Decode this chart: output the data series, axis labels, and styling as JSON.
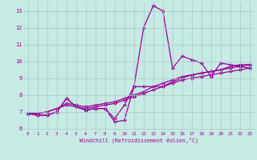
{
  "xlabel": "Windchill (Refroidissement éolien,°C)",
  "bg_color": "#c8eae4",
  "grid_color": "#a8c8c4",
  "line_color": "#990099",
  "marker": "D",
  "markersize": 2.0,
  "linewidth": 0.9,
  "xlim": [
    -0.5,
    23.5
  ],
  "ylim": [
    5.85,
    13.55
  ],
  "yticks": [
    6,
    7,
    8,
    9,
    10,
    11,
    12,
    13
  ],
  "xticks": [
    0,
    1,
    2,
    3,
    4,
    5,
    6,
    7,
    8,
    9,
    10,
    11,
    12,
    13,
    14,
    15,
    16,
    17,
    18,
    19,
    20,
    21,
    22,
    23
  ],
  "series": [
    [
      6.9,
      6.8,
      6.8,
      7.0,
      7.8,
      7.3,
      7.1,
      7.2,
      7.2,
      6.4,
      6.5,
      8.5,
      12.0,
      13.3,
      13.0,
      9.6,
      10.3,
      10.1,
      9.9,
      9.1,
      9.9,
      9.8,
      9.7,
      9.6
    ],
    [
      6.9,
      6.8,
      6.8,
      7.0,
      7.8,
      7.3,
      7.1,
      7.2,
      7.2,
      6.6,
      7.4,
      8.5,
      8.5,
      8.5,
      8.5,
      8.8,
      9.0,
      9.2,
      9.3,
      9.4,
      9.5,
      9.7,
      9.8,
      9.8
    ],
    [
      6.9,
      6.9,
      7.0,
      7.2,
      7.5,
      7.4,
      7.3,
      7.4,
      7.5,
      7.6,
      7.8,
      8.0,
      8.2,
      8.5,
      8.7,
      8.9,
      9.1,
      9.2,
      9.3,
      9.4,
      9.5,
      9.6,
      9.7,
      9.8
    ],
    [
      6.9,
      6.9,
      7.0,
      7.2,
      7.4,
      7.3,
      7.2,
      7.3,
      7.4,
      7.5,
      7.7,
      7.9,
      8.1,
      8.3,
      8.5,
      8.7,
      8.9,
      9.0,
      9.1,
      9.2,
      9.3,
      9.4,
      9.5,
      9.6
    ]
  ]
}
